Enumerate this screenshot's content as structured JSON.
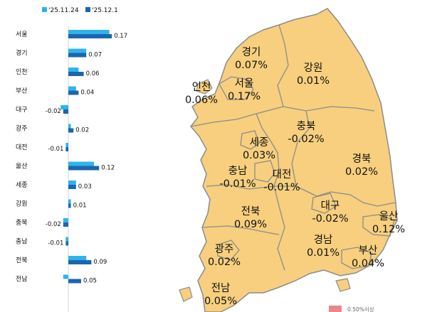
{
  "legend": {
    "items": [
      {
        "label": "'25.11.24",
        "color": "#2fb4ea"
      },
      {
        "label": "'25.12.1",
        "color": "#1a66b0"
      }
    ]
  },
  "chart_data": {
    "type": "bar",
    "orientation": "horizontal",
    "categories": [
      "서울",
      "경기",
      "인천",
      "부산",
      "대구",
      "광주",
      "대전",
      "울산",
      "세종",
      "강원",
      "충북",
      "충남",
      "전북",
      "전남"
    ],
    "series": [
      {
        "name": "'25.11.24",
        "color": "#2fb4ea",
        "values": [
          0.16,
          0.07,
          0.04,
          0.03,
          -0.03,
          0.01,
          -0.01,
          0.1,
          0.03,
          0.01,
          -0.02,
          -0.01,
          0.07,
          -0.02
        ]
      },
      {
        "name": "'25.12.1",
        "color": "#1a66b0",
        "values": [
          0.17,
          0.07,
          0.06,
          0.04,
          -0.02,
          0.02,
          -0.01,
          0.12,
          0.03,
          0.01,
          -0.02,
          -0.01,
          0.09,
          0.05
        ]
      }
    ],
    "value_labels": [
      "0.17",
      "0.07",
      "0.06",
      "0.04",
      "-0.02",
      "0.02",
      "-0.01",
      "0.12",
      "0.03",
      "0.01",
      "-0.02",
      "-0.01",
      "0.09",
      "0.05"
    ]
  },
  "map": {
    "fill_color": "#f7cf7e",
    "border_color": "#8c8c8c",
    "regions": [
      {
        "name": "경기",
        "value": "0.07%"
      },
      {
        "name": "강원",
        "value": "0.01%"
      },
      {
        "name": "인천",
        "value": "0.06%"
      },
      {
        "name": "서울",
        "value": "0.17%"
      },
      {
        "name": "충북",
        "value": "-0.02%"
      },
      {
        "name": "세종",
        "value": "0.03%"
      },
      {
        "name": "경북",
        "value": "0.02%"
      },
      {
        "name": "충남",
        "value": "-0.01%"
      },
      {
        "name": "대전",
        "value": "-0.01%"
      },
      {
        "name": "전북",
        "value": "0.09%"
      },
      {
        "name": "대구",
        "value": "-0.02%"
      },
      {
        "name": "울산",
        "value": "0.12%"
      },
      {
        "name": "경남",
        "value": "0.01%"
      },
      {
        "name": "광주",
        "value": "0.02%"
      },
      {
        "name": "부산",
        "value": "0.04%"
      },
      {
        "name": "전남",
        "value": "0.05%"
      }
    ],
    "legend_label": "0.50%이상",
    "legend_color": "#e8888a"
  }
}
